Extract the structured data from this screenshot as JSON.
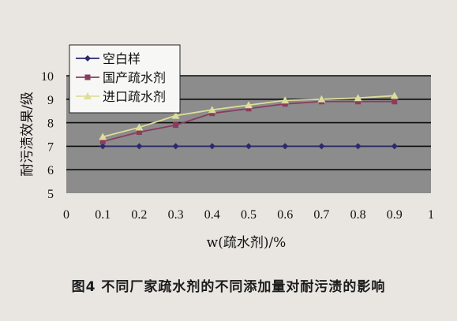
{
  "chart_data": {
    "type": "line",
    "x": [
      0.1,
      0.2,
      0.3,
      0.4,
      0.5,
      0.6,
      0.7,
      0.8,
      0.9
    ],
    "xticks": [
      "0",
      "0.1",
      "0.2",
      "0.3",
      "0.4",
      "0.5",
      "0.6",
      "0.7",
      "0.8",
      "0.9",
      "1"
    ],
    "yticks": [
      "5",
      "6",
      "7",
      "8",
      "9",
      "10"
    ],
    "ylim": [
      5,
      10
    ],
    "xlim": [
      0,
      1
    ],
    "xlabel": "w(疏水剂)/%",
    "ylabel": "耐污渍效果/级",
    "grid": true,
    "legend_position": "top-left",
    "series": [
      {
        "name": "空白样",
        "color": "#2b2a6e",
        "marker": "diamond",
        "values": [
          7.0,
          7.0,
          7.0,
          7.0,
          7.0,
          7.0,
          7.0,
          7.0,
          7.0
        ]
      },
      {
        "name": "国产疏水剂",
        "color": "#8a3c5e",
        "marker": "square",
        "values": [
          7.2,
          7.6,
          7.9,
          8.4,
          8.6,
          8.8,
          8.9,
          8.9,
          8.9
        ]
      },
      {
        "name": "进口疏水剂",
        "color": "#dede9c",
        "marker": "triangle",
        "values": [
          7.4,
          7.8,
          8.3,
          8.55,
          8.75,
          8.95,
          9.0,
          9.05,
          9.15
        ]
      }
    ]
  },
  "caption": "图4  不同厂家疏水剂的不同添加量对耐污渍的影响"
}
